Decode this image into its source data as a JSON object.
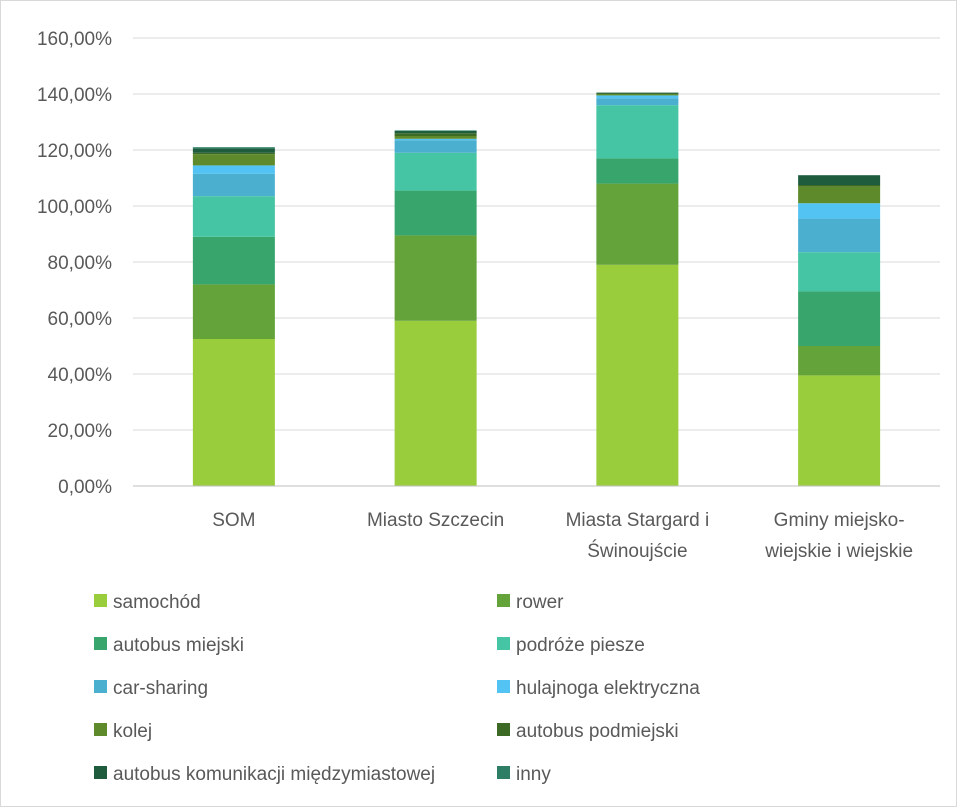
{
  "chart_data": {
    "type": "bar",
    "stacked": true,
    "title": "",
    "xlabel": "",
    "ylabel": "",
    "ylim": [
      0,
      160
    ],
    "yticks": [
      "0,00%",
      "20,00%",
      "40,00%",
      "60,00%",
      "80,00%",
      "100,00%",
      "120,00%",
      "140,00%",
      "160,00%"
    ],
    "categories": [
      [
        "SOM"
      ],
      [
        "Miasto Szczecin"
      ],
      [
        "Miasta Stargard i",
        "Świnoujście"
      ],
      [
        "Gminy miejsko-",
        "wiejskie i wiejskie"
      ]
    ],
    "grid": true,
    "legend_position": "bottom",
    "series": [
      {
        "name": "samochód",
        "color": "#9acd3c",
        "values": [
          52.5,
          59.0,
          79.0,
          39.5
        ]
      },
      {
        "name": "rower",
        "color": "#64a23a",
        "values": [
          19.5,
          30.5,
          29.0,
          10.5
        ]
      },
      {
        "name": "autobus miejski",
        "color": "#37a56c",
        "values": [
          17.0,
          16.0,
          9.0,
          19.5
        ]
      },
      {
        "name": "podróże piesze",
        "color": "#45c5a3",
        "values": [
          14.5,
          13.5,
          19.0,
          14.0
        ]
      },
      {
        "name": "car-sharing",
        "color": "#4bb0cf",
        "values": [
          8.0,
          4.5,
          2.5,
          12.0
        ]
      },
      {
        "name": "hulajnoga elektryczna",
        "color": "#52c3f2",
        "values": [
          3.0,
          0.5,
          1.0,
          5.5
        ]
      },
      {
        "name": "kolej",
        "color": "#5f8a2b",
        "values": [
          4.0,
          1.0,
          0.5,
          6.0
        ]
      },
      {
        "name": "autobus podmiejski",
        "color": "#3c6a24",
        "values": [
          0.5,
          1.0,
          0.2,
          0.5
        ]
      },
      {
        "name": "autobus komunikacji międzymiastowej",
        "color": "#1f5c3e",
        "values": [
          1.5,
          0.8,
          0.3,
          3.5
        ]
      },
      {
        "name": "inny",
        "color": "#2d7e65",
        "values": [
          0.5,
          0.2,
          0.0,
          0.0
        ]
      }
    ]
  }
}
